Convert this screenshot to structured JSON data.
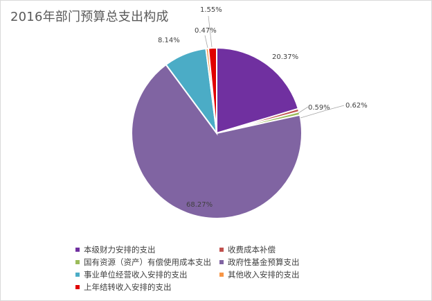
{
  "chart_data": {
    "type": "pie",
    "title": "2016年部门预算总支出构成",
    "slices": [
      {
        "name": "本级财力安排的支出",
        "value": 20.37,
        "label": "20.37%",
        "color": "#7030a0"
      },
      {
        "name": "收费成本补偿",
        "value": 0.59,
        "label": "0.59%",
        "color": "#c0504d"
      },
      {
        "name": "国有资源（资产）有偿使用成本支出",
        "value": 0.62,
        "label": "0.62%",
        "color": "#9bbb59"
      },
      {
        "name": "政府性基金预算支出",
        "value": 68.27,
        "label": "68.27%",
        "color": "#8064a2"
      },
      {
        "name": "事业单位经营收入安排的支出",
        "value": 8.14,
        "label": "8.14%",
        "color": "#4bacc6"
      },
      {
        "name": "其他收入安排的支出",
        "value": 0.47,
        "label": "0.47%",
        "color": "#f79646"
      },
      {
        "name": "上年结转收入安排的支出",
        "value": 1.55,
        "label": "1.55%",
        "color": "#e00000"
      }
    ],
    "start_angle": "12 o'clock",
    "direction": "clockwise",
    "legend_position": "bottom"
  }
}
